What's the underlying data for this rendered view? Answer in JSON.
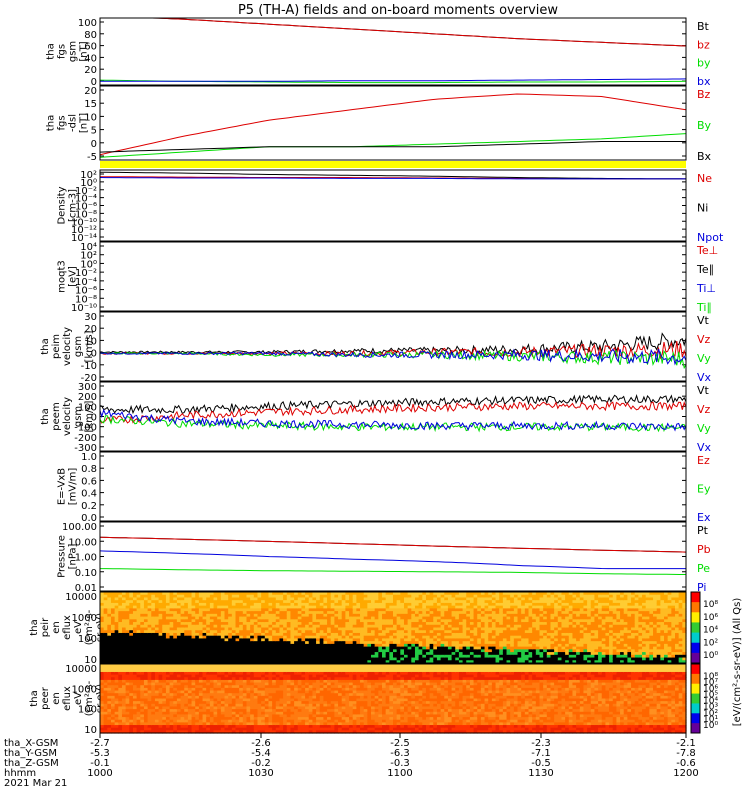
{
  "title": "P5 (TH-A) fields and on-board moments overview",
  "colors": {
    "black": "#000000",
    "red": "#dd0000",
    "green": "#00dd00",
    "blue": "#0000dd",
    "yellow": "#ffff00"
  },
  "chart_data": [
    {
      "type": "line",
      "ylabel": [
        "tha",
        "fgs",
        "gsm",
        "[nT]"
      ],
      "yticks": [
        "100",
        "80",
        "60",
        "40",
        "20",
        "0"
      ],
      "ylim": [
        -10,
        100
      ],
      "series": [
        {
          "name": "Bt",
          "color": "#000000",
          "values": [
            104,
            98,
            90,
            82,
            74,
            66,
            60,
            54
          ]
        },
        {
          "name": "bz",
          "color": "#dd0000",
          "values": [
            104,
            98,
            90,
            82,
            74,
            66,
            60,
            54
          ]
        },
        {
          "name": "by",
          "color": "#00dd00",
          "values": [
            -2,
            -4,
            -5,
            -6,
            -6,
            -5,
            -5,
            -4
          ]
        },
        {
          "name": "bx",
          "color": "#0000dd",
          "values": [
            -4,
            -4,
            -4,
            -3,
            -3,
            -2,
            -1,
            0
          ]
        }
      ]
    },
    {
      "type": "line",
      "ylabel": [
        "tha",
        "fgs",
        "-dsl",
        "[nT]"
      ],
      "yticks": [
        "20",
        "15",
        "10",
        "5",
        "0",
        "-5"
      ],
      "ylim": [
        -7,
        21
      ],
      "series": [
        {
          "name": "Bz",
          "color": "#dd0000",
          "values": [
            -5,
            2,
            8,
            12,
            16,
            18,
            17,
            12
          ]
        },
        {
          "name": "By",
          "color": "#00dd00",
          "values": [
            -6,
            -4,
            -2,
            -2,
            -1,
            0,
            1,
            3
          ]
        },
        {
          "name": "Bx",
          "color": "#000000",
          "values": [
            -4,
            -3,
            -2,
            -2,
            -2,
            -1,
            0,
            0
          ]
        }
      ]
    },
    {
      "type": "line",
      "ylabel": [
        "Density",
        "[cm-3]"
      ],
      "yticks": [
        "10²",
        "10⁰",
        "10⁻²",
        "10⁻⁴",
        "10⁻⁶",
        "10⁻⁸",
        "10⁻¹⁰",
        "10⁻¹²",
        "10⁻¹⁴"
      ],
      "ylim": [
        -14,
        2
      ],
      "series": [
        {
          "name": "Ne",
          "color": "#dd0000",
          "values": [
            0.5,
            0.4,
            0.3,
            0.3,
            0.2,
            0.1,
            0.0,
            0.0
          ]
        },
        {
          "name": "Ni",
          "color": "#000000",
          "values": [
            1.5,
            1.3,
            1.0,
            0.8,
            0.6,
            0.3,
            0.1,
            0.0
          ]
        },
        {
          "name": "Npot",
          "color": "#0000dd",
          "values": [
            0.3,
            0.2,
            0.2,
            0.1,
            0.1,
            0.0,
            0.0,
            0.0
          ]
        }
      ]
    },
    {
      "type": "line",
      "ylabel": [
        "moqt3",
        "[eV]"
      ],
      "yticks": [
        "10⁴",
        "10²",
        "10⁰",
        "10⁻²",
        "10⁻⁴",
        "10⁻⁶",
        "10⁻⁸",
        "10⁻¹⁰"
      ],
      "ylim": [
        -10,
        4
      ],
      "series": [
        {
          "name": "Te⊥",
          "color": "#dd0000",
          "values": [
            4,
            4,
            4,
            4,
            4,
            4,
            4,
            4
          ]
        },
        {
          "name": "Te∥",
          "color": "#000000",
          "values": [
            4,
            4,
            4,
            4,
            4,
            4,
            4,
            4
          ]
        },
        {
          "name": "Ti⊥",
          "color": "#0000dd",
          "values": [
            4,
            4,
            4,
            4,
            4,
            4,
            4,
            4
          ]
        },
        {
          "name": "Ti∥",
          "color": "#00dd00",
          "values": [
            4,
            4,
            4,
            4,
            4,
            4,
            4,
            4
          ]
        }
      ]
    },
    {
      "type": "line",
      "ylabel": [
        "tha",
        "peim",
        "velocity",
        "gsm",
        "[km/s]"
      ],
      "yticks": [
        "30",
        "20",
        "10",
        "0",
        "-10",
        "-20"
      ],
      "ylim": [
        -20,
        30
      ],
      "series": [
        {
          "name": "Vt",
          "color": "#000000",
          "values": [
            1,
            1,
            1,
            2,
            2,
            3,
            5,
            10
          ]
        },
        {
          "name": "Vz",
          "color": "#dd0000",
          "values": [
            0,
            0,
            0,
            0,
            1,
            1,
            2,
            3
          ]
        },
        {
          "name": "Vy",
          "color": "#00dd00",
          "values": [
            0,
            0,
            -1,
            -1,
            -1,
            -2,
            -3,
            -4
          ]
        },
        {
          "name": "Vx",
          "color": "#0000dd",
          "values": [
            0,
            0,
            0,
            -1,
            -1,
            -1,
            -2,
            -3
          ]
        }
      ]
    },
    {
      "type": "line",
      "ylabel": [
        "tha",
        "peem",
        "velocity",
        "gsm",
        "[km/s]"
      ],
      "yticks": [
        "300",
        "200",
        "100",
        "0",
        "-100",
        "-200",
        "-300"
      ],
      "ylim": [
        -300,
        300
      ],
      "series": [
        {
          "name": "Vt",
          "color": "#000000",
          "values": [
            60,
            60,
            90,
            110,
            130,
            140,
            150,
            150
          ]
        },
        {
          "name": "Vz",
          "color": "#dd0000",
          "values": [
            -40,
            10,
            40,
            60,
            80,
            90,
            90,
            90
          ]
        },
        {
          "name": "Vy",
          "color": "#00dd00",
          "values": [
            -20,
            -60,
            -80,
            -90,
            -90,
            -90,
            -90,
            -100
          ]
        },
        {
          "name": "Vx",
          "color": "#0000dd",
          "values": [
            30,
            -40,
            -60,
            -70,
            -80,
            -80,
            -80,
            -90
          ]
        }
      ]
    },
    {
      "type": "line",
      "ylabel": [
        "E=-VxB",
        "[mV/m]"
      ],
      "yticks": [
        "1.0",
        "0.8",
        "0.6",
        "0.4",
        "0.2",
        "0.0"
      ],
      "ylim": [
        0,
        1
      ],
      "series": [
        {
          "name": "Ez",
          "color": "#dd0000",
          "values": []
        },
        {
          "name": "Ey",
          "color": "#00dd00",
          "values": []
        },
        {
          "name": "Ex",
          "color": "#0000dd",
          "values": []
        }
      ]
    },
    {
      "type": "line",
      "log": true,
      "ylabel": [
        "Pressure",
        "[nPa]"
      ],
      "yticks": [
        "100.00",
        "10.00",
        "1.00",
        "0.10",
        "0.01"
      ],
      "ylim": [
        0.01,
        100
      ],
      "series": [
        {
          "name": "Pt",
          "color": "#000000",
          "values": [
            13,
            10,
            7.5,
            5.5,
            4,
            3,
            2.3,
            1.8
          ]
        },
        {
          "name": "Pb",
          "color": "#dd0000",
          "values": [
            13,
            10,
            7.5,
            5.5,
            4,
            3,
            2.3,
            1.8
          ]
        },
        {
          "name": "Pe",
          "color": "#00dd00",
          "values": [
            0.2,
            0.17,
            0.15,
            0.14,
            0.13,
            0.12,
            0.1,
            0.09
          ]
        },
        {
          "name": "Pi",
          "color": "#0000dd",
          "values": [
            2.1,
            1.5,
            1.0,
            0.7,
            0.5,
            0.3,
            0.2,
            0.2
          ]
        }
      ]
    },
    {
      "type": "heatmap",
      "ylabel": [
        "tha",
        "peir",
        "en",
        "eflux",
        "eV",
        "(cm²-s-",
        "sr-eV)"
      ],
      "yticks": [
        "10000",
        "1000",
        "100",
        "10"
      ],
      "ylim": [
        5,
        30000
      ],
      "colorbar_label": "[eV/(cm²-s-sr-eV)] (All Qs)",
      "colorbar_ticks": [
        "10⁸",
        "10⁶",
        "10⁴",
        "10²",
        "10⁰"
      ]
    },
    {
      "type": "heatmap",
      "ylabel": [
        "tha",
        "peer",
        "en",
        "eflux",
        "eV",
        "(cm²-s-",
        "sr-eV)"
      ],
      "yticks": [
        "10000",
        "1000",
        "100",
        "10"
      ],
      "ylim": [
        5,
        30000
      ],
      "colorbar_ticks": [
        "10⁸",
        "10⁷",
        "10⁶",
        "10⁵",
        "10⁴",
        "10³",
        "10²",
        "10¹",
        "10⁰"
      ]
    }
  ],
  "x_axis": {
    "rows": [
      {
        "label": "tha_X-GSM",
        "values": [
          "-2.7",
          "-2.6",
          "-2.5",
          "-2.3",
          "-2.1"
        ]
      },
      {
        "label": "tha_Y-GSM",
        "values": [
          "-5.3",
          "-5.4",
          "-6.3",
          "-7.1",
          "-7.8"
        ]
      },
      {
        "label": "tha_Z-GSM",
        "values": [
          "-0.1",
          "-0.2",
          "-0.3",
          "-0.5",
          "-0.6"
        ]
      },
      {
        "label": "hhmm",
        "values": [
          "1000",
          "1030",
          "1100",
          "1130",
          "1200"
        ]
      }
    ],
    "date": "2021 Mar 21"
  }
}
